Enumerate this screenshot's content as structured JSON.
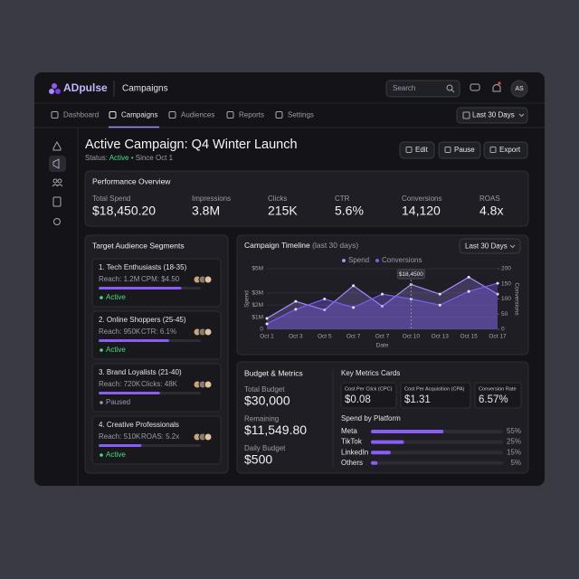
{
  "app": {
    "logo": "ADpulse",
    "section": "Campaigns",
    "search": "Search",
    "avatar": "AS"
  },
  "nav": {
    "tabs": [
      "Dashboard",
      "Campaigns",
      "Audiences",
      "Reports",
      "Settings"
    ],
    "range": "Last 30 Days"
  },
  "header": {
    "title": "Active Campaign: Q4 Winter Launch",
    "status_label": "Status:",
    "status": "Active",
    "since": "• Since Oct 1",
    "actions": [
      "Edit",
      "Pause",
      "Export"
    ]
  },
  "overview": {
    "title": "Performance Overview",
    "metrics": [
      {
        "label": "Total Spend",
        "value": "$18,450.20"
      },
      {
        "label": "Impressions",
        "value": "3.8M"
      },
      {
        "label": "Clicks",
        "value": "215K"
      },
      {
        "label": "CTR",
        "value": "5.6%"
      },
      {
        "label": "Conversions",
        "value": "14,120"
      },
      {
        "label": "ROAS",
        "value": "4.8x"
      }
    ]
  },
  "segments": {
    "title": "Target Audience Segments",
    "items": [
      {
        "name": "1. Tech Enthusiasts (18-35)",
        "stat1": "Reach: 1.2M",
        "stat2": "CPM: $4.50",
        "progress": 81,
        "status": "Active"
      },
      {
        "name": "2. Online Shoppers (25-45)",
        "stat1": "Reach: 950K",
        "stat2": "CTR: 6.1%",
        "progress": 69,
        "status": "Active"
      },
      {
        "name": "3. Brand Loyalists (21-40)",
        "stat1": "Reach: 720K",
        "stat2": "Clicks: 48K",
        "progress": 60,
        "status": "Paused"
      },
      {
        "name": "4. Creative Professionals",
        "stat1": "Reach: 510K",
        "stat2": "ROAS: 5.2x",
        "progress": 42,
        "status": "Active"
      }
    ]
  },
  "timeline": {
    "type": "line",
    "title": "Campaign Timeline",
    "subtitle": "(last 30 days)",
    "range": "Last 30 Days",
    "categories": [
      "Oct 1",
      "Oct 3",
      "Oct 5",
      "Oct 7",
      "Oct 7",
      "Oct 10",
      "Oct 13",
      "Oct 15",
      "Oct 17"
    ],
    "series": [
      {
        "name": "Spend",
        "color": "#a78bfa",
        "values": [
          0.9,
          2.3,
          1.6,
          3.6,
          1.9,
          3.7,
          2.9,
          4.3,
          2.9
        ]
      },
      {
        "name": "Conversions",
        "color": "#7c5cf0",
        "axis": "y2",
        "values": [
          18,
          66,
          100,
          72,
          116,
          100,
          80,
          125,
          152
        ]
      }
    ],
    "ylim": [
      0,
      5
    ],
    "yticks": [
      0,
      {
        "value": 1,
        "label": "$1M"
      },
      {
        "value": 2,
        "label": "$2M"
      },
      {
        "value": 3,
        "label": "$3M"
      },
      {
        "value": 5,
        "label": "$5M"
      }
    ],
    "y2lim": [
      0,
      200
    ],
    "y2ticks": [
      0,
      50,
      100,
      150,
      200
    ],
    "ylabel": "Spend",
    "y2label": "Conversions",
    "xlabel": "Date",
    "annotation": "$18,4500",
    "grid": true
  },
  "budget": {
    "title": "Budget & Metrics",
    "items": [
      {
        "label": "Total Budget",
        "value": "$30,000"
      },
      {
        "label": "Remaining",
        "value": "$11,549.80"
      },
      {
        "label": "Daily Budget",
        "value": "$500"
      }
    ],
    "cards_title": "Key Metrics Cards",
    "cards": [
      {
        "label": "Cost Per Click (CPC)",
        "value": "$0.08"
      },
      {
        "label": "Cost Per Acquisition (CPA)",
        "value": "$1.31"
      },
      {
        "label": "Conversion Rate",
        "value": "6.57%"
      }
    ],
    "platform_title": "Spend by Platform",
    "platforms": [
      {
        "name": "Meta",
        "value": 55,
        "label": "55%"
      },
      {
        "name": "TikTok",
        "value": 25,
        "label": "25%"
      },
      {
        "name": "LinkedIn",
        "value": 15,
        "label": "15%"
      },
      {
        "name": "Others",
        "value": 5,
        "label": "5%"
      }
    ]
  }
}
